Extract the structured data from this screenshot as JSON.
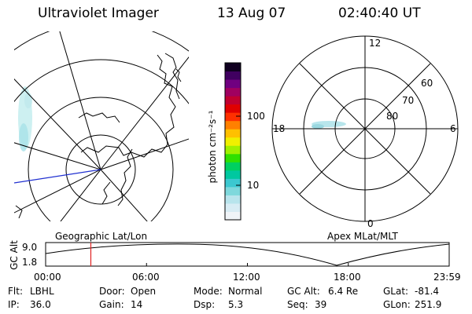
{
  "header": {
    "title": "Ultraviolet Imager",
    "date": "13 Aug 07",
    "time": "02:40:40 UT"
  },
  "left_map": {
    "label": "Geographic Lat/Lon"
  },
  "color_bar": {
    "unit_label": "photon cm⁻²s⁻¹",
    "tick_100": "100",
    "tick_10": "10",
    "colors": [
      "#f0f4f8",
      "#d8ecf4",
      "#b8e4ec",
      "#7ed8dc",
      "#3cc8d0",
      "#00c8a0",
      "#00d060",
      "#30e000",
      "#a0f000",
      "#f0f000",
      "#ffc000",
      "#ff8000",
      "#ff3000",
      "#e00000",
      "#c00030",
      "#a00060",
      "#700080",
      "#400060",
      "#100020"
    ]
  },
  "polar_plot": {
    "label": "Apex MLat/MLT",
    "mlt_12": "12",
    "mlt_18": "18",
    "mlt_6": "6",
    "mlt_0": "0",
    "lat_60": "60",
    "lat_70": "70",
    "lat_80": "80"
  },
  "altitude_plot": {
    "ylabel": "GC Alt",
    "y_tick_high": "9.0",
    "y_tick_low": "1.8",
    "x_ticks": [
      "00:00",
      "06:00",
      "12:00",
      "18:00",
      "23:59"
    ],
    "current_time_fraction": 0.112
  },
  "info": {
    "flt_label": "Flt:",
    "flt_value": "LBHL",
    "ip_label": "IP:",
    "ip_value": "36.0",
    "door_label": "Door:",
    "door_value": "Open",
    "gain_label": "Gain:",
    "gain_value": "14",
    "mode_label": "Mode:",
    "mode_value": "Normal",
    "dsp_label": "Dsp:",
    "dsp_value": "5.3",
    "gcalt_label": "GC Alt:",
    "gcalt_value": "6.4 Re",
    "seq_label": "Seq:",
    "seq_value": "39",
    "glat_label": "GLat:",
    "glat_value": "-81.4",
    "glon_label": "GLon:",
    "glon_value": "251.9"
  }
}
